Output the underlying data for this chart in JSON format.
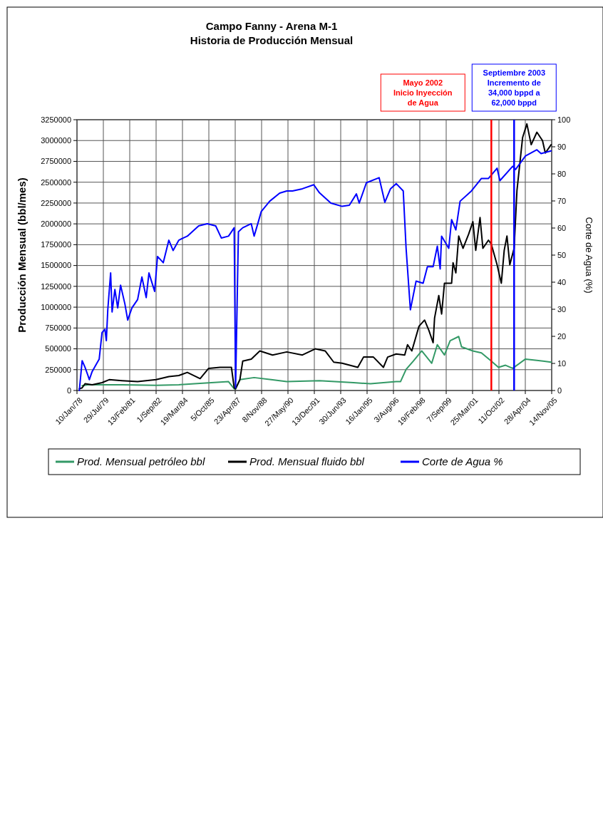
{
  "chart_data": {
    "type": "line",
    "title": "Campo Fanny - Arena M-1",
    "subtitle": "Historia de Producción Mensual",
    "ylabel": "Producción Mensual (bbl/mes)",
    "y2label": "Corte de Agua (%)",
    "xlim": [
      "1978-01-10",
      "2005-11-14"
    ],
    "xticks": [
      {
        "value": "1978-01-10",
        "label": "10/Jan/78"
      },
      {
        "value": "1979-07-29",
        "label": "29/Jul/79"
      },
      {
        "value": "1981-02-13",
        "label": "13/Feb/81"
      },
      {
        "value": "1982-09-01",
        "label": "1/Sep/82"
      },
      {
        "value": "1984-03-19",
        "label": "19/Mar/84"
      },
      {
        "value": "1985-10-05",
        "label": "5/Oct/85"
      },
      {
        "value": "1987-04-23",
        "label": "23/Apr/87"
      },
      {
        "value": "1988-11-08",
        "label": "8/Nov/88"
      },
      {
        "value": "1990-05-27",
        "label": "27/May/90"
      },
      {
        "value": "1991-12-13",
        "label": "13/Dec/91"
      },
      {
        "value": "1993-06-30",
        "label": "30/Jun/93"
      },
      {
        "value": "1995-01-16",
        "label": "16/Jan/95"
      },
      {
        "value": "1996-08-03",
        "label": "3/Aug/96"
      },
      {
        "value": "1998-02-19",
        "label": "19/Feb/98"
      },
      {
        "value": "1999-09-07",
        "label": "7/Sep/99"
      },
      {
        "value": "2001-03-25",
        "label": "25/Mar/01"
      },
      {
        "value": "2002-10-11",
        "label": "11/Oct/02"
      },
      {
        "value": "2004-04-28",
        "label": "28/Apr/04"
      },
      {
        "value": "2005-11-14",
        "label": "14/Nov/05"
      }
    ],
    "ylim": [
      0,
      3250000
    ],
    "yticks": [
      0,
      250000,
      500000,
      750000,
      1000000,
      1250000,
      1500000,
      1750000,
      2000000,
      2250000,
      2500000,
      2750000,
      3000000,
      3250000
    ],
    "y2lim": [
      0,
      100
    ],
    "y2ticks": [
      0,
      10,
      20,
      30,
      40,
      50,
      60,
      70,
      80,
      90,
      100
    ],
    "grid": true,
    "legend": "bottom",
    "line_style": "solid",
    "series": [
      {
        "name": "Prod. Mensual petróleo bbl",
        "color": "#339966",
        "x": [
          "1978-05",
          "1978-09",
          "1979-09",
          "1980-09",
          "1982-09",
          "1984-01",
          "1984-12",
          "1985-12",
          "1986-12",
          "1987-04",
          "1987-05",
          "1987-08",
          "1988-06",
          "1989-06",
          "1990-05",
          "1992-04",
          "1994-04",
          "1995-04",
          "1996-10",
          "1997-01",
          "1997-05",
          "1997-10",
          "1998-04",
          "1998-11",
          "1999-03",
          "1999-08",
          "1999-12",
          "2000-06",
          "2000-08",
          "2001-04",
          "2001-10",
          "2002-05",
          "2002-10",
          "2003-03",
          "2003-08",
          "2004-05",
          "2005-01",
          "2005-11"
        ],
        "values": [
          57000,
          69000,
          69000,
          69000,
          62000,
          69000,
          81000,
          94000,
          106000,
          20000,
          20000,
          130000,
          155000,
          130000,
          106000,
          118000,
          94000,
          81000,
          106000,
          106000,
          254000,
          352000,
          475000,
          327000,
          549000,
          426000,
          598000,
          648000,
          524000,
          475000,
          451000,
          352000,
          278000,
          303000,
          266000,
          377000,
          362000,
          340000
        ]
      },
      {
        "name": "Prod. Mensual fluido bbl",
        "color": "#000000",
        "x": [
          "1978-03",
          "1978-05",
          "1978-07",
          "1978-12",
          "1979-07",
          "1979-12",
          "1980-09",
          "1981-08",
          "1982-09",
          "1983-06",
          "1984-01",
          "1984-07",
          "1985-04",
          "1985-10",
          "1986-06",
          "1987-02",
          "1987-04",
          "1987-05",
          "1987-08",
          "1987-10",
          "1988-04",
          "1988-10",
          "1989-07",
          "1990-05",
          "1991-04",
          "1992-01",
          "1992-08",
          "1993-02",
          "1993-08",
          "1994-07",
          "1994-11",
          "1995-06",
          "1996-01",
          "1996-04",
          "1996-10",
          "1997-04",
          "1997-06",
          "1997-09",
          "1998-02",
          "1998-06",
          "1998-09",
          "1998-12",
          "1999-01",
          "1999-04",
          "1999-06",
          "1999-08",
          "2000-01",
          "2000-02",
          "2000-04",
          "2000-06",
          "2000-09",
          "2001-01",
          "2001-04",
          "2001-06",
          "2001-09",
          "2001-11",
          "2002-03",
          "2002-05",
          "2002-09",
          "2002-12",
          "2003-02",
          "2003-04",
          "2003-06",
          "2003-09",
          "2003-11",
          "2004-03",
          "2004-06",
          "2004-09",
          "2005-01",
          "2005-05",
          "2005-07",
          "2005-11"
        ],
        "values": [
          20000,
          32000,
          81000,
          69000,
          94000,
          130000,
          118000,
          106000,
          130000,
          167000,
          180000,
          217000,
          143000,
          266000,
          278000,
          278000,
          32000,
          20000,
          130000,
          352000,
          377000,
          475000,
          426000,
          463000,
          426000,
          500000,
          475000,
          340000,
          327000,
          278000,
          401000,
          401000,
          278000,
          401000,
          438000,
          426000,
          549000,
          475000,
          771000,
          845000,
          721000,
          574000,
          869000,
          1140000,
          918000,
          1288000,
          1288000,
          1534000,
          1411000,
          1854000,
          1706000,
          1879000,
          2026000,
          1682000,
          2076000,
          1706000,
          1805000,
          1755000,
          1509000,
          1288000,
          1682000,
          1854000,
          1509000,
          1706000,
          2400000,
          3036000,
          3200000,
          2950000,
          3100000,
          3000000,
          2850000,
          2950000
        ]
      },
      {
        "name": "Corte de Agua %",
        "color": "#0000ff",
        "axis": "y2",
        "x": [
          "1978-03",
          "1978-05",
          "1978-07",
          "1978-09",
          "1978-10",
          "1978-12",
          "1979-05",
          "1979-07",
          "1979-09",
          "1979-10",
          "1979-11",
          "1980-01",
          "1980-02",
          "1980-04",
          "1980-06",
          "1980-08",
          "1980-11",
          "1981-01",
          "1981-04",
          "1981-08",
          "1981-11",
          "1982-02",
          "1982-04",
          "1982-08",
          "1982-10",
          "1983-02",
          "1983-06",
          "1983-09",
          "1984-01",
          "1984-04",
          "1984-07",
          "1985-03",
          "1985-09",
          "1986-03",
          "1986-07",
          "1986-12",
          "1987-04",
          "1987-05",
          "1987-07",
          "1987-10",
          "1988-04",
          "1988-06",
          "1988-09",
          "1988-11",
          "1989-05",
          "1989-12",
          "1990-05",
          "1990-09",
          "1991-04",
          "1991-12",
          "1992-04",
          "1992-12",
          "1993-08",
          "1994-01",
          "1994-06",
          "1994-08",
          "1995-01",
          "1995-10",
          "1996-02",
          "1996-06",
          "1996-10",
          "1997-03",
          "1997-05",
          "1997-08",
          "1997-12",
          "1998-05",
          "1998-08",
          "1998-12",
          "1999-03",
          "1999-05",
          "1999-06",
          "1999-11",
          "2000-01",
          "2000-04",
          "2000-07",
          "2001-03",
          "2001-10",
          "2002-03",
          "2002-09",
          "2002-11",
          "2003-08",
          "2003-10",
          "2004-05",
          "2005-01",
          "2005-04",
          "2005-11"
        ],
        "values": [
          0,
          11,
          8.6,
          5.6,
          4,
          7,
          11.6,
          21.4,
          22.6,
          18.4,
          29.8,
          43.4,
          29,
          37.3,
          30.5,
          38.9,
          32,
          26,
          30.5,
          33.6,
          41.9,
          34.3,
          43.4,
          36.6,
          49.5,
          47.2,
          55.5,
          51.7,
          55.5,
          56.3,
          57,
          60.8,
          61.6,
          60.8,
          56.3,
          57,
          60.1,
          1,
          58.6,
          60.1,
          61.6,
          57,
          62.4,
          66.1,
          69.9,
          72.9,
          73.7,
          73.7,
          74.5,
          76,
          73,
          69.2,
          68,
          68.4,
          72.6,
          69.2,
          76.7,
          78.6,
          69.5,
          74.5,
          76.4,
          73.7,
          52.5,
          29.8,
          40.4,
          39.6,
          45.7,
          45.7,
          53.3,
          44.9,
          57,
          52.5,
          63.1,
          59.3,
          69.9,
          73.7,
          78.3,
          78.3,
          82.1,
          77.5,
          82.8,
          81.6,
          86.6,
          88.9,
          87.5,
          88.5
        ]
      }
    ],
    "ref_lines": [
      {
        "axis": "x",
        "value": "2002-05-01",
        "label": "Mayo 2002\nInicio Inyección\nde Agua",
        "color": "#ff0000",
        "line_style": "solid"
      },
      {
        "axis": "x",
        "value": "2003-09-01",
        "label": "Septiembre 2003\nIncremento de\n34,000 bppd a\n62,000 bppd",
        "color": "#0000ff",
        "line_style": "solid"
      }
    ]
  }
}
